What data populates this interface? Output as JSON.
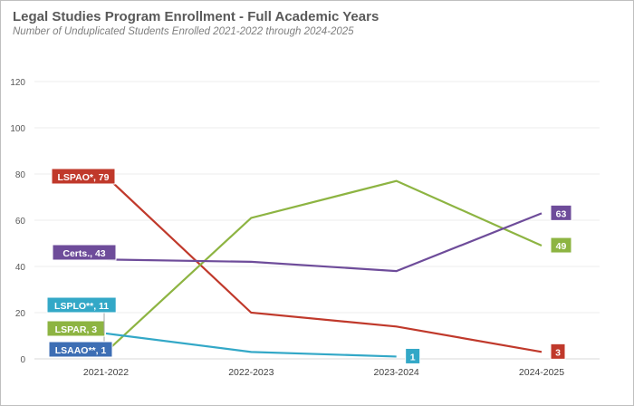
{
  "chart_data": {
    "type": "line",
    "title": "Legal Studies Program Enrollment - Full Academic Years",
    "subtitle": "Number of Unduplicated Students Enrolled 2021-2022 through 2024-2025",
    "categories": [
      "2021-2022",
      "2022-2023",
      "2023-2024",
      "2024-2025"
    ],
    "ylim": [
      0,
      120
    ],
    "yticks": [
      0,
      20,
      40,
      60,
      80,
      100,
      120
    ],
    "grid": true,
    "series": [
      {
        "name": "LSPAO*",
        "color": "#c0392b",
        "values": [
          79,
          20,
          14,
          3
        ],
        "start_label": "LSPAO*, 79",
        "end_label": "3"
      },
      {
        "name": "LSPAR",
        "color": "#8db442",
        "values": [
          3,
          61,
          77,
          49
        ],
        "start_label": "LSPAR,  3",
        "end_label": "49"
      },
      {
        "name": "Certs.",
        "color": "#6e4c9a",
        "values": [
          43,
          42,
          38,
          63
        ],
        "start_label": "Certs., 43",
        "end_label": "63"
      },
      {
        "name": "LSPLO**",
        "color": "#33a8c7",
        "values": [
          11,
          3,
          1,
          null
        ],
        "start_label": "LSPLO**, 11",
        "end_label": "1"
      },
      {
        "name": "LSAAO**",
        "color": "#3d6eb4",
        "values": [
          1,
          null,
          null,
          null
        ],
        "start_label": "LSAAO**, 1",
        "end_label": ""
      }
    ]
  }
}
